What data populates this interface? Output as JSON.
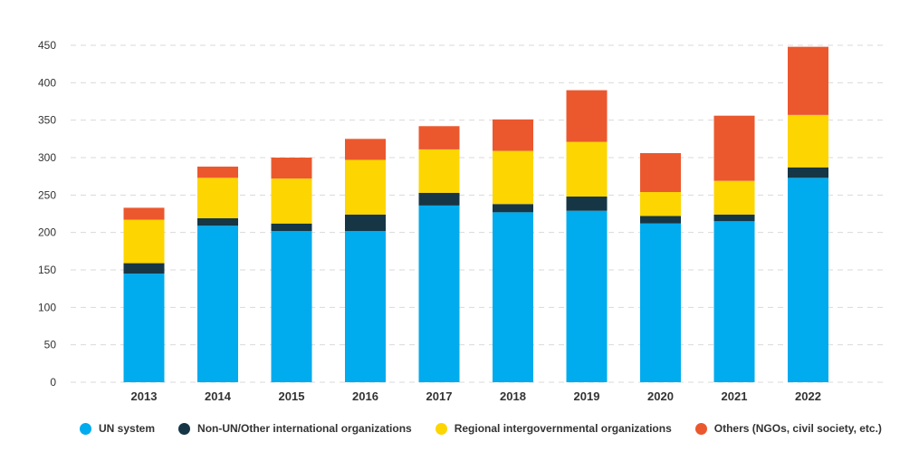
{
  "chart_data": {
    "type": "bar",
    "stacked": true,
    "categories": [
      "2013",
      "2014",
      "2015",
      "2016",
      "2017",
      "2018",
      "2019",
      "2020",
      "2021",
      "2022"
    ],
    "series": [
      {
        "name": "UN system",
        "color": "#00ABEE",
        "values": [
          145,
          209,
          202,
          202,
          236,
          227,
          229,
          212,
          215,
          273
        ]
      },
      {
        "name": "Non-UN/Other international organizations",
        "color": "#163645",
        "values": [
          14,
          10,
          10,
          22,
          17,
          11,
          19,
          10,
          9,
          14
        ]
      },
      {
        "name": "Regional intergovernmental organizations",
        "color": "#FDD500",
        "values": [
          58,
          54,
          60,
          73,
          58,
          71,
          73,
          32,
          45,
          70
        ]
      },
      {
        "name": "Others (NGOs, civil society, etc.)",
        "color": "#EB582E",
        "values": [
          16,
          15,
          28,
          28,
          31,
          42,
          69,
          52,
          87,
          91
        ]
      }
    ],
    "y_ticks": [
      0,
      50,
      100,
      150,
      200,
      250,
      300,
      350,
      400,
      450
    ],
    "ylim": [
      0,
      450
    ],
    "title": "",
    "xlabel": "",
    "ylabel": "",
    "grid": true,
    "legend_position": "bottom"
  }
}
